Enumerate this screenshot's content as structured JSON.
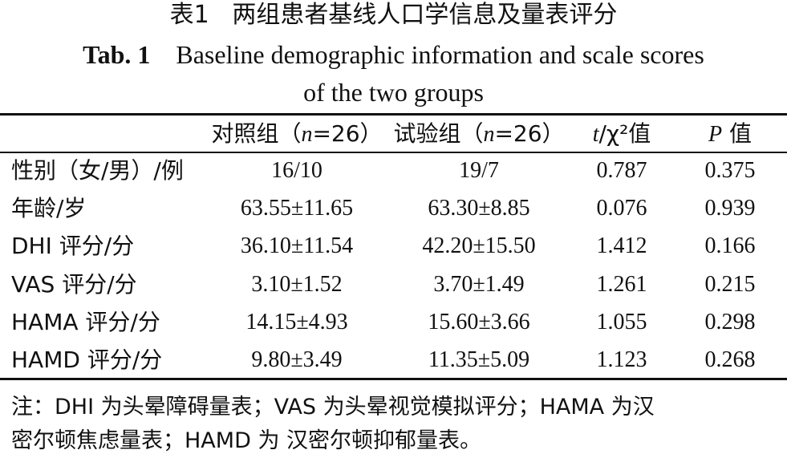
{
  "caption": {
    "cn_label": "表1",
    "cn_title": "两组患者基线人口学信息及量表评分",
    "en_label": "Tab. 1",
    "en_title_lines": [
      "Baseline demographic information and scale scores",
      "of the two groups"
    ]
  },
  "table": {
    "header": [
      [
        ""
      ],
      [
        "对照组（",
        "n",
        "=26）"
      ],
      [
        "试验组（",
        "n",
        "=26）"
      ],
      [
        "t",
        "/χ²值"
      ],
      [
        "P",
        " 值"
      ]
    ],
    "rows": [
      [
        "性别（女/男）/例",
        "16/10",
        "19/7",
        "0.787",
        "0.375"
      ],
      [
        "年龄/岁",
        "63.55±11.65",
        "63.30±8.85",
        "0.076",
        "0.939"
      ],
      [
        "DHI 评分/分",
        "36.10±11.54",
        "42.20±15.50",
        "1.412",
        "0.166"
      ],
      [
        "VAS 评分/分",
        "3.10±1.52",
        "3.70±1.49",
        "1.261",
        "0.215"
      ],
      [
        "HAMA 评分/分",
        "14.15±4.93",
        "15.60±3.66",
        "1.055",
        "0.298"
      ],
      [
        "HAMD 评分/分",
        "9.80±3.49",
        "11.35±5.09",
        "1.123",
        "0.268"
      ]
    ]
  },
  "note_lines": [
    "注：DHI 为头晕障碍量表；VAS 为头晕视觉模拟评分；HAMA 为汉",
    "密尔顿焦虑量表；HAMD 为 汉密尔顿抑郁量表。"
  ]
}
